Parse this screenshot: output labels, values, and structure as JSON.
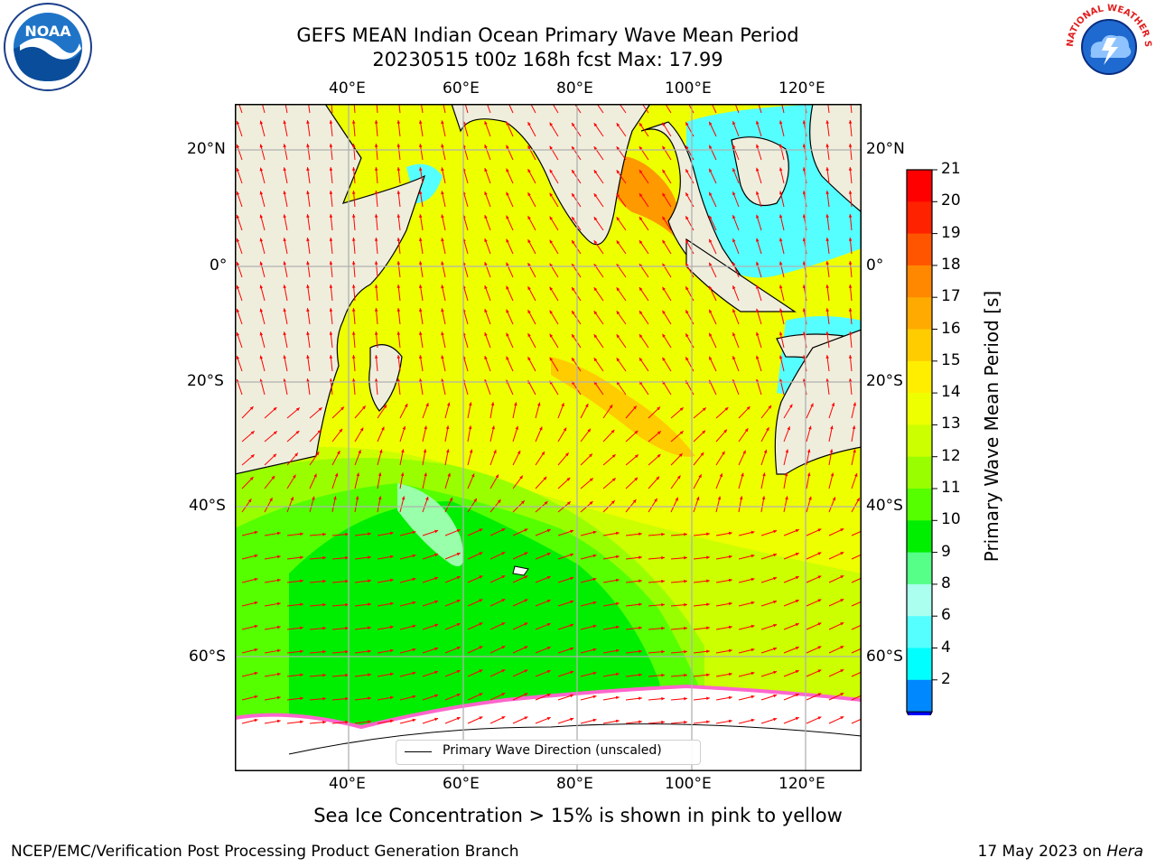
{
  "header": {
    "title_line1": "GEFS MEAN Indian Ocean Primary Wave Mean Period",
    "title_line2": "20230515 t00z 168h fcst   Max: 17.99"
  },
  "logos": {
    "left": {
      "name": "noaa-logo",
      "text": "NOAA"
    },
    "right": {
      "name": "nws-logo",
      "text": "NATIONAL WEATHER SERVICE"
    }
  },
  "map": {
    "lon_labels": [
      "40°E",
      "60°E",
      "80°E",
      "100°E",
      "120°E"
    ],
    "lat_labels_left": [
      "20°N",
      "0°",
      "20°S",
      "40°S",
      "60°S"
    ],
    "lat_labels_right": [
      "20°N",
      "0°",
      "20°S",
      "40°S",
      "60°S"
    ],
    "legend": "Primary Wave Direction (unscaled)"
  },
  "colorbar": {
    "label": "Primary Wave Mean Period [s]",
    "ticks": [
      "21",
      "20",
      "19",
      "18",
      "17",
      "16",
      "15",
      "14",
      "13",
      "12",
      "11",
      "10",
      "9",
      "8",
      "6",
      "4",
      "2"
    ],
    "colors": [
      "#ff0000",
      "#ff2200",
      "#ff5500",
      "#ff8800",
      "#ffaa00",
      "#ffcc00",
      "#ffee00",
      "#eeff00",
      "#ccff00",
      "#99ff00",
      "#55ff00",
      "#00ee00",
      "#55ff88",
      "#aaffee",
      "#55ffff",
      "#00ffff",
      "#0088ff"
    ],
    "underflow_color": "#0000ff"
  },
  "caption": "Sea Ice Concentration > 15% is shown in pink to yellow",
  "footer": {
    "left": "NCEP/EMC/Verification Post Processing Product Generation Branch",
    "right_prefix": "17 May 2023 on ",
    "right_host": "Hera"
  },
  "field_colors": {
    "land": "#efeedd",
    "ice": "#ffffff",
    "arrow": "#ff0000",
    "grid": "#b0b0b0"
  }
}
